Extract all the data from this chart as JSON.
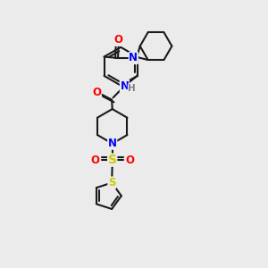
{
  "bg_color": "#ebebeb",
  "bond_color": "#1a1a1a",
  "line_width": 1.5,
  "atom_colors": {
    "N": "#0000ff",
    "O": "#ff0000",
    "S": "#cccc00",
    "H": "#808080"
  },
  "font_size": 8.5
}
